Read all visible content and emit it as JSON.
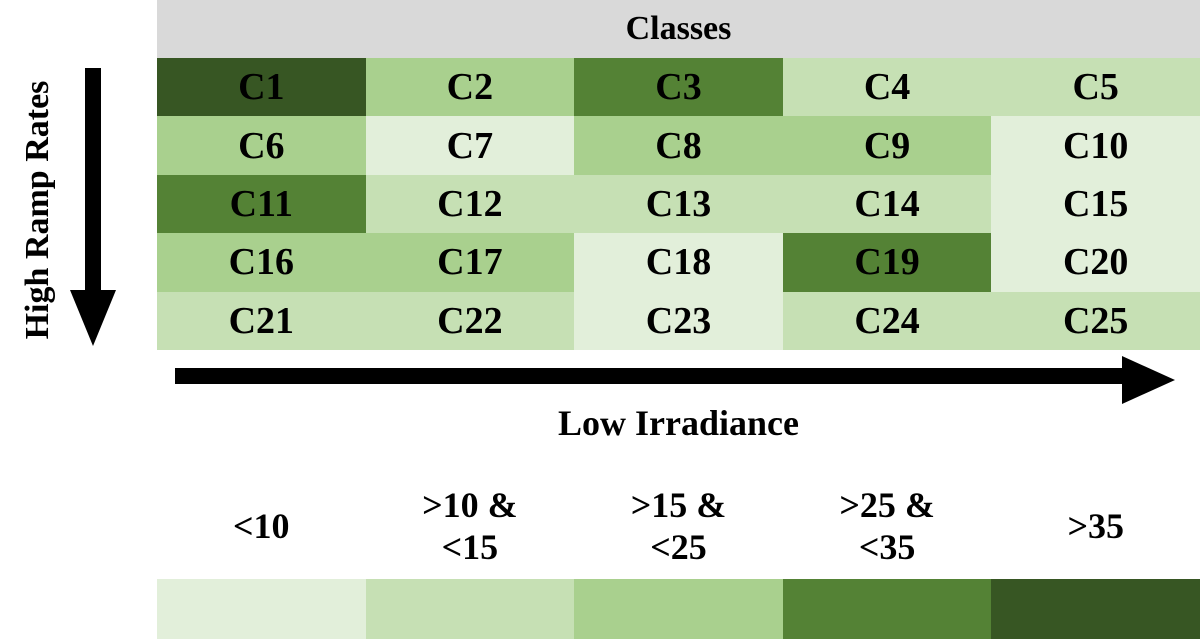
{
  "header": {
    "title": "Classes"
  },
  "y_axis": {
    "label": "High Ramp Rates"
  },
  "x_axis": {
    "label": "Low Irradiance"
  },
  "palette": [
    "#e2efda",
    "#c6e0b4",
    "#a9d08e",
    "#548235",
    "#375623"
  ],
  "grid": {
    "cells": [
      {
        "label": "C1",
        "level": 4
      },
      {
        "label": "C2",
        "level": 2
      },
      {
        "label": "C3",
        "level": 3
      },
      {
        "label": "C4",
        "level": 1
      },
      {
        "label": "C5",
        "level": 1
      },
      {
        "label": "C6",
        "level": 2
      },
      {
        "label": "C7",
        "level": 0
      },
      {
        "label": "C8",
        "level": 2
      },
      {
        "label": "C9",
        "level": 2
      },
      {
        "label": "C10",
        "level": 0
      },
      {
        "label": "C11",
        "level": 3
      },
      {
        "label": "C12",
        "level": 1
      },
      {
        "label": "C13",
        "level": 1
      },
      {
        "label": "C14",
        "level": 1
      },
      {
        "label": "C15",
        "level": 0
      },
      {
        "label": "C16",
        "level": 2
      },
      {
        "label": "C17",
        "level": 2
      },
      {
        "label": "C18",
        "level": 0
      },
      {
        "label": "C19",
        "level": 3
      },
      {
        "label": "C20",
        "level": 0
      },
      {
        "label": "C21",
        "level": 1
      },
      {
        "label": "C22",
        "level": 1
      },
      {
        "label": "C23",
        "level": 0
      },
      {
        "label": "C24",
        "level": 1
      },
      {
        "label": "C25",
        "level": 1
      }
    ]
  },
  "legend": [
    {
      "lines": [
        "<10"
      ]
    },
    {
      "lines": [
        ">10 &",
        "<15"
      ]
    },
    {
      "lines": [
        ">15 &",
        "<25"
      ]
    },
    {
      "lines": [
        ">25 &",
        "<35"
      ]
    },
    {
      "lines": [
        ">35"
      ]
    }
  ]
}
